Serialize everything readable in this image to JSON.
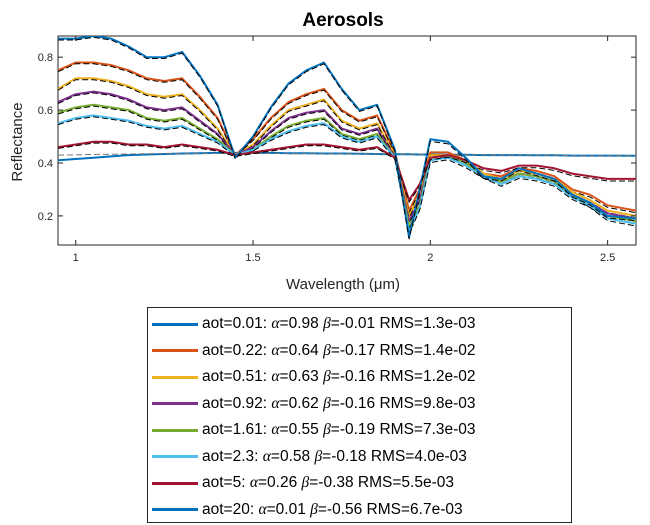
{
  "chart_data": {
    "type": "line",
    "title": "Aerosols",
    "xlabel": "Wavelength (μm)",
    "ylabel": "Reflectance",
    "xlim": [
      0.95,
      2.58
    ],
    "ylim": [
      0.09,
      0.88
    ],
    "x_ticks": [
      {
        "value": 1,
        "label": "1"
      },
      {
        "value": 1.5,
        "label": "1.5"
      },
      {
        "value": 2,
        "label": "2"
      },
      {
        "value": 2.5,
        "label": "2.5"
      }
    ],
    "y_ticks": [
      {
        "value": 0.2,
        "label": "0.2"
      },
      {
        "value": 0.4,
        "label": "0.4"
      },
      {
        "value": 0.6,
        "label": "0.6"
      },
      {
        "value": 0.8,
        "label": "0.8"
      }
    ],
    "grid": false,
    "legend_placement": "below",
    "x": [
      0.95,
      1.0,
      1.05,
      1.1,
      1.15,
      1.2,
      1.25,
      1.3,
      1.35,
      1.4,
      1.45,
      1.5,
      1.55,
      1.6,
      1.65,
      1.7,
      1.75,
      1.8,
      1.85,
      1.9,
      1.94,
      1.97,
      2.0,
      2.05,
      2.1,
      2.15,
      2.2,
      2.25,
      2.3,
      2.35,
      2.4,
      2.45,
      2.5,
      2.58
    ],
    "series": [
      {
        "name": "aot=0.01",
        "color": "#0072BD",
        "legend": {
          "aot": "aot=0.01",
          "alpha": "0.98",
          "beta": "-0.01",
          "rms": "RMS=1.3e-03"
        },
        "values": [
          0.41,
          0.415,
          0.42,
          0.425,
          0.43,
          0.432,
          0.434,
          0.436,
          0.437,
          0.438,
          0.438,
          0.438,
          0.438,
          0.437,
          0.437,
          0.436,
          0.436,
          0.435,
          0.434,
          0.433,
          0.433,
          0.432,
          0.432,
          0.431,
          0.431,
          0.43,
          0.43,
          0.43,
          0.429,
          0.429,
          0.428,
          0.428,
          0.428,
          0.427
        ],
        "fit": [
          0.43,
          0.431,
          0.432,
          0.433,
          0.434,
          0.435,
          0.435,
          0.436,
          0.436,
          0.436,
          0.436,
          0.436,
          0.436,
          0.436,
          0.436,
          0.435,
          0.435,
          0.435,
          0.434,
          0.434,
          0.433,
          0.433,
          0.432,
          0.432,
          0.431,
          0.431,
          0.43,
          0.43,
          0.429,
          0.429,
          0.428,
          0.428,
          0.428,
          0.427
        ]
      },
      {
        "name": "aot=0.22",
        "color": "#D95319",
        "legend": {
          "aot": "aot=0.22",
          "alpha": "0.64",
          "beta": "-0.17",
          "rms": "RMS=1.4e-02"
        },
        "values": [
          0.75,
          0.78,
          0.78,
          0.77,
          0.75,
          0.72,
          0.71,
          0.72,
          0.65,
          0.57,
          0.43,
          0.49,
          0.57,
          0.63,
          0.66,
          0.68,
          0.6,
          0.56,
          0.58,
          0.44,
          0.22,
          0.3,
          0.44,
          0.44,
          0.41,
          0.36,
          0.35,
          0.38,
          0.37,
          0.35,
          0.3,
          0.28,
          0.24,
          0.22
        ],
        "fit": [
          0.745,
          0.775,
          0.775,
          0.765,
          0.745,
          0.715,
          0.705,
          0.715,
          0.645,
          0.565,
          0.425,
          0.485,
          0.565,
          0.625,
          0.655,
          0.675,
          0.595,
          0.555,
          0.575,
          0.435,
          0.212,
          0.292,
          0.432,
          0.432,
          0.402,
          0.352,
          0.342,
          0.372,
          0.362,
          0.342,
          0.292,
          0.272,
          0.232,
          0.212
        ]
      },
      {
        "name": "aot=0.51",
        "color": "#EDB120",
        "legend": {
          "aot": "aot=0.51",
          "alpha": "0.63",
          "beta": "-0.16",
          "rms": "RMS=1.2e-02"
        },
        "values": [
          0.68,
          0.72,
          0.72,
          0.71,
          0.69,
          0.66,
          0.65,
          0.66,
          0.6,
          0.53,
          0.43,
          0.47,
          0.54,
          0.6,
          0.62,
          0.64,
          0.56,
          0.53,
          0.55,
          0.43,
          0.2,
          0.28,
          0.43,
          0.43,
          0.41,
          0.36,
          0.34,
          0.37,
          0.36,
          0.34,
          0.29,
          0.26,
          0.22,
          0.2
        ],
        "fit": [
          0.675,
          0.715,
          0.715,
          0.705,
          0.685,
          0.655,
          0.645,
          0.655,
          0.595,
          0.525,
          0.425,
          0.465,
          0.535,
          0.595,
          0.615,
          0.635,
          0.555,
          0.525,
          0.545,
          0.425,
          0.192,
          0.272,
          0.422,
          0.422,
          0.402,
          0.352,
          0.332,
          0.362,
          0.352,
          0.332,
          0.282,
          0.252,
          0.212,
          0.192
        ]
      },
      {
        "name": "aot=0.92",
        "color": "#7E2F8E",
        "legend": {
          "aot": "aot=0.92",
          "alpha": "0.62",
          "beta": "-0.16",
          "rms": "RMS=9.8e-03"
        },
        "values": [
          0.63,
          0.66,
          0.67,
          0.66,
          0.64,
          0.61,
          0.6,
          0.61,
          0.56,
          0.51,
          0.43,
          0.46,
          0.52,
          0.57,
          0.59,
          0.6,
          0.53,
          0.51,
          0.53,
          0.42,
          0.18,
          0.26,
          0.42,
          0.43,
          0.4,
          0.35,
          0.33,
          0.36,
          0.35,
          0.33,
          0.28,
          0.25,
          0.21,
          0.19
        ],
        "fit": [
          0.625,
          0.655,
          0.665,
          0.655,
          0.635,
          0.605,
          0.595,
          0.605,
          0.555,
          0.505,
          0.425,
          0.455,
          0.515,
          0.565,
          0.585,
          0.595,
          0.525,
          0.505,
          0.525,
          0.415,
          0.172,
          0.252,
          0.412,
          0.422,
          0.392,
          0.342,
          0.322,
          0.352,
          0.342,
          0.322,
          0.272,
          0.242,
          0.202,
          0.182
        ]
      },
      {
        "name": "aot=1.61",
        "color": "#77AC30",
        "legend": {
          "aot": "aot=1.61",
          "alpha": "0.55",
          "beta": "-0.19",
          "rms": "RMS=7.3e-03"
        },
        "values": [
          0.59,
          0.61,
          0.62,
          0.61,
          0.6,
          0.57,
          0.56,
          0.57,
          0.53,
          0.49,
          0.43,
          0.45,
          0.5,
          0.54,
          0.56,
          0.57,
          0.51,
          0.49,
          0.51,
          0.42,
          0.16,
          0.24,
          0.42,
          0.43,
          0.4,
          0.35,
          0.33,
          0.36,
          0.35,
          0.33,
          0.28,
          0.24,
          0.2,
          0.18
        ],
        "fit": [
          0.585,
          0.605,
          0.615,
          0.605,
          0.595,
          0.565,
          0.555,
          0.565,
          0.525,
          0.485,
          0.425,
          0.445,
          0.495,
          0.535,
          0.555,
          0.565,
          0.505,
          0.485,
          0.505,
          0.415,
          0.152,
          0.232,
          0.412,
          0.422,
          0.392,
          0.342,
          0.322,
          0.352,
          0.342,
          0.322,
          0.272,
          0.232,
          0.192,
          0.172
        ]
      },
      {
        "name": "aot=2.3",
        "color": "#4DBEEE",
        "legend": {
          "aot": "aot=2.3",
          "alpha": "0.58",
          "beta": "-0.18",
          "rms": "RMS=4.0e-03"
        },
        "values": [
          0.55,
          0.57,
          0.58,
          0.57,
          0.56,
          0.54,
          0.53,
          0.54,
          0.51,
          0.48,
          0.43,
          0.45,
          0.49,
          0.52,
          0.54,
          0.55,
          0.5,
          0.48,
          0.5,
          0.42,
          0.14,
          0.23,
          0.41,
          0.42,
          0.39,
          0.35,
          0.32,
          0.35,
          0.34,
          0.32,
          0.27,
          0.24,
          0.19,
          0.17
        ],
        "fit": [
          0.545,
          0.565,
          0.575,
          0.565,
          0.555,
          0.535,
          0.525,
          0.535,
          0.505,
          0.475,
          0.425,
          0.445,
          0.485,
          0.515,
          0.535,
          0.545,
          0.495,
          0.475,
          0.495,
          0.415,
          0.132,
          0.222,
          0.402,
          0.412,
          0.382,
          0.342,
          0.312,
          0.342,
          0.332,
          0.312,
          0.262,
          0.232,
          0.182,
          0.162
        ]
      },
      {
        "name": "aot=5",
        "color": "#A2142F",
        "legend": {
          "aot": "aot=5",
          "alpha": "0.26",
          "beta": "-0.38",
          "rms": "RMS=5.5e-03"
        },
        "values": [
          0.46,
          0.47,
          0.48,
          0.48,
          0.47,
          0.47,
          0.46,
          0.47,
          0.46,
          0.45,
          0.43,
          0.44,
          0.45,
          0.46,
          0.47,
          0.47,
          0.46,
          0.45,
          0.46,
          0.42,
          0.26,
          0.32,
          0.42,
          0.43,
          0.41,
          0.38,
          0.37,
          0.39,
          0.39,
          0.38,
          0.36,
          0.35,
          0.34,
          0.34
        ],
        "fit": [
          0.455,
          0.465,
          0.475,
          0.475,
          0.465,
          0.465,
          0.455,
          0.465,
          0.455,
          0.445,
          0.425,
          0.435,
          0.445,
          0.455,
          0.465,
          0.465,
          0.455,
          0.445,
          0.455,
          0.415,
          0.252,
          0.312,
          0.412,
          0.422,
          0.402,
          0.372,
          0.362,
          0.382,
          0.382,
          0.372,
          0.352,
          0.342,
          0.332,
          0.332
        ]
      },
      {
        "name": "aot=20",
        "color": "#0072BD",
        "legend": {
          "aot": "aot=20",
          "alpha": "0.01",
          "beta": "-0.56",
          "rms": "RMS=6.7e-03"
        },
        "values": [
          0.87,
          0.87,
          0.88,
          0.87,
          0.84,
          0.8,
          0.8,
          0.82,
          0.73,
          0.62,
          0.42,
          0.5,
          0.61,
          0.7,
          0.75,
          0.78,
          0.68,
          0.6,
          0.62,
          0.45,
          0.12,
          0.3,
          0.49,
          0.48,
          0.42,
          0.35,
          0.34,
          0.38,
          0.36,
          0.34,
          0.28,
          0.25,
          0.2,
          0.19
        ],
        "fit": [
          0.865,
          0.865,
          0.875,
          0.865,
          0.835,
          0.795,
          0.795,
          0.815,
          0.725,
          0.615,
          0.415,
          0.495,
          0.605,
          0.695,
          0.745,
          0.775,
          0.675,
          0.595,
          0.615,
          0.445,
          0.112,
          0.292,
          0.482,
          0.472,
          0.412,
          0.342,
          0.332,
          0.372,
          0.352,
          0.332,
          0.272,
          0.242,
          0.192,
          0.182
        ]
      }
    ]
  }
}
